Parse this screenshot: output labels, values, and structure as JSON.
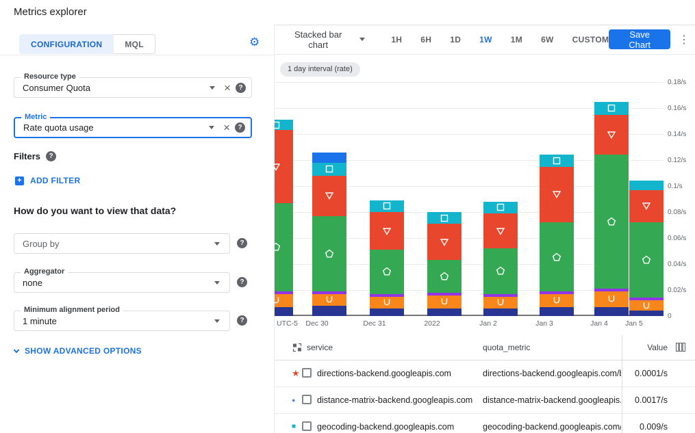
{
  "header": {
    "title": "Metrics explorer"
  },
  "left_panel": {
    "tabs": [
      {
        "label": "CONFIGURATION",
        "active": true
      },
      {
        "label": "MQL",
        "active": false
      }
    ],
    "resource_type": {
      "label": "Resource type",
      "value": "Consumer Quota"
    },
    "metric": {
      "label": "Metric",
      "value": "Rate quota usage"
    },
    "filters_label": "Filters",
    "add_filter_label": "ADD FILTER",
    "view_question": "How do you want to view that data?",
    "group_by": {
      "placeholder": "Group by"
    },
    "aggregator": {
      "label": "Aggregator",
      "value": "none"
    },
    "alignment_period": {
      "label": "Minimum alignment period",
      "value": "1 minute"
    },
    "advanced_options_label": "SHOW ADVANCED OPTIONS"
  },
  "toolbar": {
    "chart_type_label": "Stacked bar chart",
    "ranges": [
      {
        "label": "1H",
        "active": false
      },
      {
        "label": "6H",
        "active": false
      },
      {
        "label": "1D",
        "active": false
      },
      {
        "label": "1W",
        "active": true
      },
      {
        "label": "1M",
        "active": false
      },
      {
        "label": "6W",
        "active": false
      },
      {
        "label": "CUSTOM",
        "active": false
      }
    ],
    "save_button_label": "Save Chart",
    "accent_color": "#1a73e8"
  },
  "interval_chip": "1 day interval (rate)",
  "chart_data": {
    "type": "bar",
    "stacked": true,
    "unit": "/s",
    "ylim": [
      0,
      0.18
    ],
    "grid": true,
    "y_ticks": [
      "0",
      "0.02/s",
      "0.04/s",
      "0.06/s",
      "0.08/s",
      "0.1/s",
      "0.12/s",
      "0.14/s",
      "0.16/s",
      "0.18/s"
    ],
    "x_axis_prefix": "UTC-5",
    "first_bar_clipped": true,
    "categories": [
      "",
      "Dec 30",
      "Dec 31",
      "2022",
      "Jan 2",
      "Jan 3",
      "Jan 4",
      "Jan 5"
    ],
    "series": [
      {
        "name": "navy",
        "color": "#283593",
        "marker": "none",
        "values": [
          0.007,
          0.008,
          0.006,
          0.006,
          0.006,
          0.007,
          0.007,
          0.004
        ]
      },
      {
        "name": "orange",
        "color": "#f8861b",
        "marker": "horseshoe",
        "values": [
          0.01,
          0.009,
          0.009,
          0.01,
          0.009,
          0.01,
          0.012,
          0.008
        ]
      },
      {
        "name": "purple",
        "color": "#9334e6",
        "marker": "none",
        "values": [
          0.002,
          0.002,
          0.002,
          0.002,
          0.002,
          0.002,
          0.002,
          0.002
        ]
      },
      {
        "name": "green",
        "color": "#34a853",
        "marker": "pentagon",
        "values": [
          0.068,
          0.058,
          0.034,
          0.025,
          0.035,
          0.053,
          0.103,
          0.058
        ]
      },
      {
        "name": "red",
        "color": "#e8462d",
        "marker": "triangle-down",
        "values": [
          0.056,
          0.031,
          0.029,
          0.028,
          0.027,
          0.043,
          0.031,
          0.025
        ]
      },
      {
        "name": "teal",
        "color": "#12b5cb",
        "marker": "square",
        "values": [
          0.008,
          0.01,
          0.009,
          0.009,
          0.009,
          0.009,
          0.01,
          0.007
        ]
      },
      {
        "name": "blue",
        "color": "#1a73e8",
        "marker": "none",
        "values": [
          0,
          0.008,
          0,
          0,
          0,
          0,
          0,
          0
        ]
      }
    ]
  },
  "table": {
    "columns": [
      "service",
      "quota_metric",
      "Value"
    ],
    "rows": [
      {
        "marker": "star",
        "marker_color": "#e8462d",
        "service": "directions-backend.googleapis.com",
        "quota_metric": "directions-backend.googleapis.com/billabl",
        "value": "0.0001/s"
      },
      {
        "marker": "circle",
        "marker_color": "#4285f4",
        "service": "distance-matrix-backend.googleapis.com",
        "quota_metric": "distance-matrix-backend.googleapis.com/l",
        "value": "0.0017/s"
      },
      {
        "marker": "square",
        "marker_color": "#12b5cb",
        "service": "geocoding-backend.googleapis.com",
        "quota_metric": "geocoding-backend.googleapis.com/billab",
        "value": "0.009/s"
      }
    ]
  }
}
